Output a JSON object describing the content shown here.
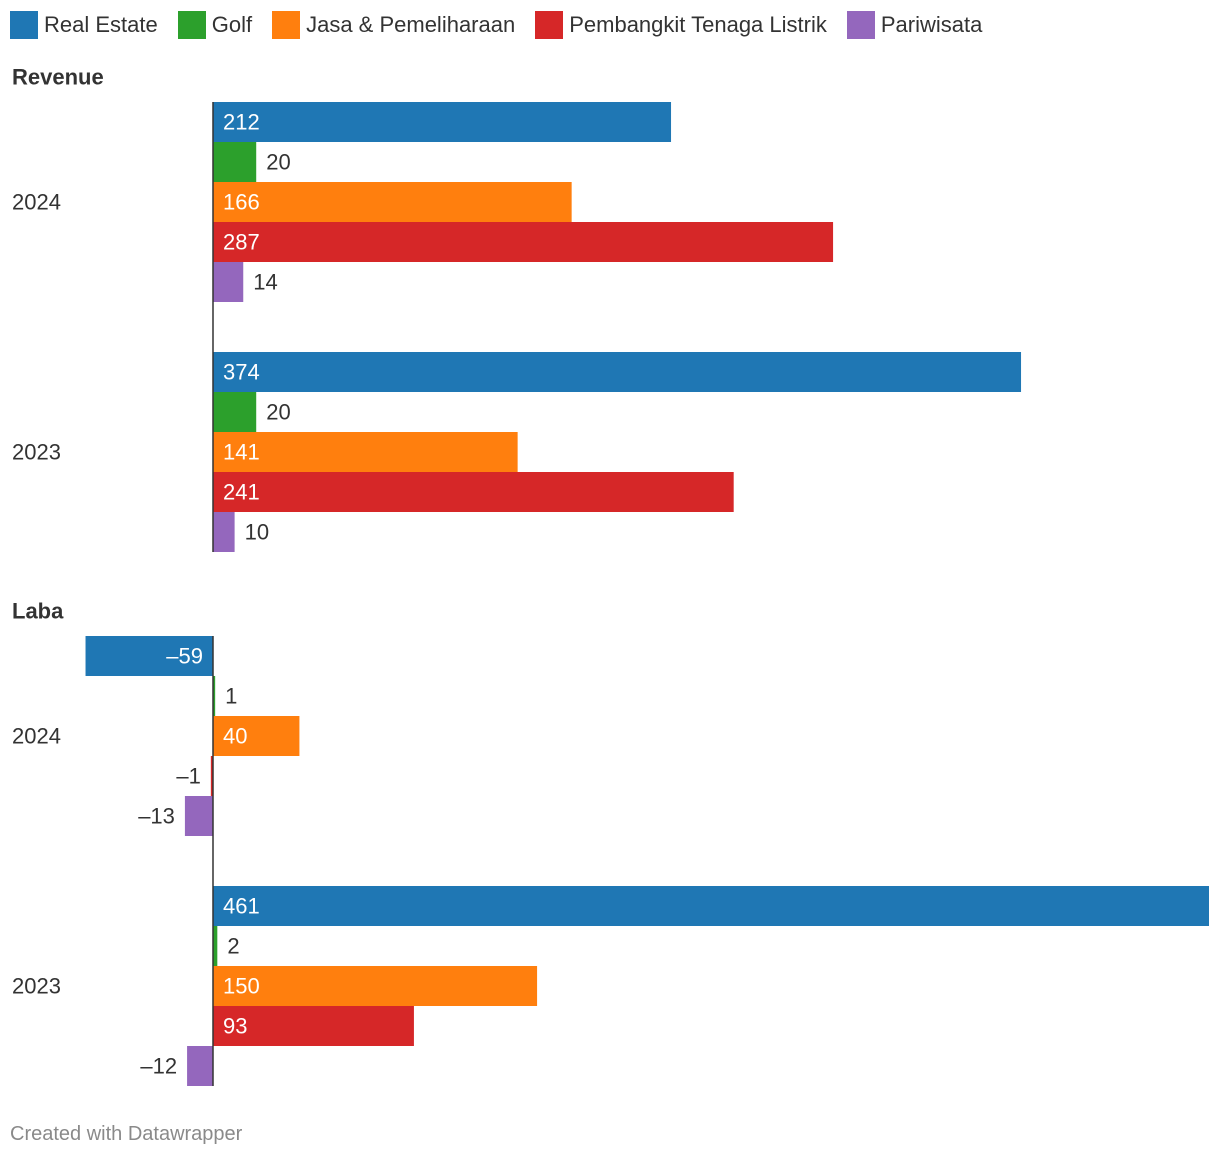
{
  "chart_data": [
    {
      "type": "bar",
      "orientation": "horizontal",
      "title": "Revenue",
      "categories": [
        "2024",
        "2023"
      ],
      "series": [
        {
          "name": "Real Estate",
          "values": [
            212,
            374
          ]
        },
        {
          "name": "Golf",
          "values": [
            20,
            20
          ]
        },
        {
          "name": "Jasa & Pemeliharaan",
          "values": [
            166,
            141
          ]
        },
        {
          "name": "Pembangkit Tenaga Listrik",
          "values": [
            287,
            241
          ]
        },
        {
          "name": "Pariwisata",
          "values": [
            14,
            10
          ]
        }
      ]
    },
    {
      "type": "bar",
      "orientation": "horizontal",
      "title": "Laba",
      "categories": [
        "2024",
        "2023"
      ],
      "series": [
        {
          "name": "Real Estate",
          "values": [
            -59,
            461
          ]
        },
        {
          "name": "Golf",
          "values": [
            1,
            2
          ]
        },
        {
          "name": "Jasa & Pemeliharaan",
          "values": [
            40,
            150
          ]
        },
        {
          "name": "Pembangkit Tenaga Listrik",
          "values": [
            -1,
            93
          ]
        },
        {
          "name": "Pariwisata",
          "values": [
            -13,
            -12
          ]
        }
      ]
    }
  ],
  "legend": [
    {
      "label": "Real Estate",
      "color": "#1f77b4"
    },
    {
      "label": "Golf",
      "color": "#2ca02c"
    },
    {
      "label": "Jasa & Pemeliharaan",
      "color": "#ff7f0e"
    },
    {
      "label": "Pembangkit Tenaga Listrik",
      "color": "#d62728"
    },
    {
      "label": "Pariwisata",
      "color": "#9467bd"
    }
  ],
  "footer": "Created with Datawrapper"
}
